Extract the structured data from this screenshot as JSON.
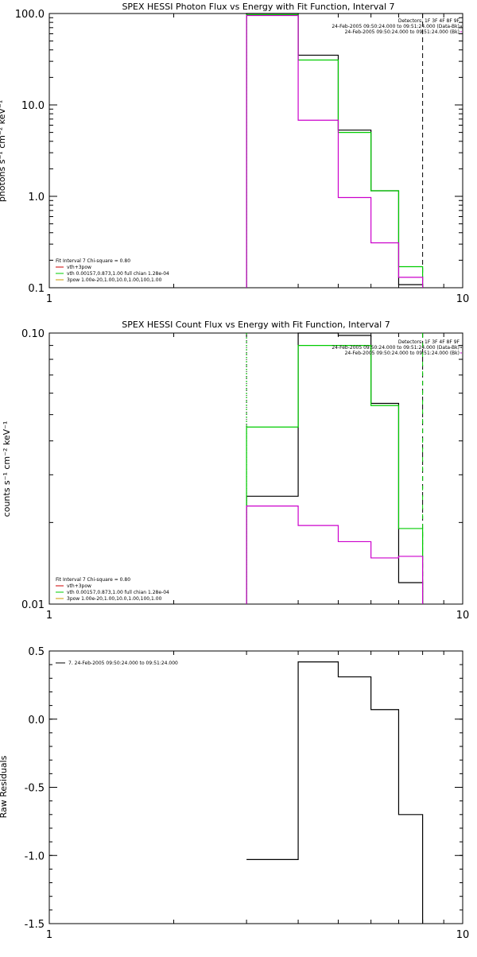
{
  "chart_data": [
    {
      "type": "line",
      "title": "SPEX HESSI Photon Flux vs Energy with Fit Function, Interval 7",
      "xlabel": "",
      "ylabel": "photons s⁻¹ cm⁻² keV⁻¹",
      "xscale": "log",
      "yscale": "log",
      "xlim": [
        1,
        10
      ],
      "ylim": [
        0.1,
        100
      ],
      "x_ticks": [
        {
          "v": 1,
          "label": "1"
        },
        {
          "v": 10,
          "label": "10"
        }
      ],
      "y_ticks": [
        {
          "v": 0.1,
          "label": "0.1"
        },
        {
          "v": 1,
          "label": "1.0"
        },
        {
          "v": 10,
          "label": "10.0"
        },
        {
          "v": 100,
          "label": "100.0"
        }
      ],
      "energy_edges": [
        3,
        4,
        5,
        6,
        7,
        8
      ],
      "vlines": [
        {
          "x": 3,
          "color": "#00cc00",
          "dash": "2,2"
        },
        {
          "x": 8,
          "color": "#000000",
          "dash": "6,4"
        }
      ],
      "series": [
        {
          "color": "#000000",
          "values": [
            100,
            35,
            5.3,
            1.15,
            0.108
          ]
        },
        {
          "color": "#00cc00",
          "values": [
            97,
            31,
            5.0,
            1.15,
            0.17
          ]
        },
        {
          "color": "#cc00cc",
          "values": [
            95,
            6.8,
            0.97,
            0.31,
            0.13
          ]
        }
      ],
      "header_labels": [
        "Detectors: 1F 3F 4F 8F 9F",
        "24-Feb-2005 09:50:24.000 to 09:51:24.000 (Data-Bk)",
        "24-Feb-2005 09:50:24.000 to 09:51:24.000 (Bk)"
      ],
      "fit_labels": [
        {
          "text": "Fit Interval  7    Chi-square = 0.80",
          "color": "#000000"
        },
        {
          "text": "vth+3pow",
          "color": "#cc0000"
        },
        {
          "text": "vth 0.00157,0.873,1.00   full chian 1.28e-04",
          "color": "#00cc00"
        },
        {
          "text": "3pow 1.00e-20,1.00,10.0,1.00,100,1.00",
          "color": "#cc9900"
        }
      ]
    },
    {
      "type": "line",
      "title": "SPEX HESSI Count Flux vs Energy with Fit Function, Interval 7",
      "xlabel": "",
      "ylabel": "counts s⁻¹ cm⁻² keV⁻¹",
      "xscale": "log",
      "yscale": "log",
      "xlim": [
        1,
        10
      ],
      "ylim": [
        0.01,
        0.1
      ],
      "x_ticks": [
        {
          "v": 1,
          "label": "1"
        },
        {
          "v": 10,
          "label": "10"
        }
      ],
      "y_ticks": [
        {
          "v": 0.01,
          "label": "0.01"
        },
        {
          "v": 0.1,
          "label": "0.10"
        }
      ],
      "energy_edges": [
        3,
        4,
        5,
        6,
        7,
        8
      ],
      "vlines": [
        {
          "x": 3,
          "color": "#000000",
          "dash": "1,2"
        },
        {
          "x": 3,
          "color": "#00cc00",
          "dash": "2,3"
        },
        {
          "x": 8,
          "color": "#000000",
          "dash": "6,4"
        },
        {
          "x": 8,
          "color": "#00cc00",
          "dash": "6,6"
        }
      ],
      "series": [
        {
          "color": "#000000",
          "values": [
            0.025,
            0.1,
            0.098,
            0.055,
            0.012
          ]
        },
        {
          "color": "#00cc00",
          "values": [
            0.045,
            0.09,
            0.09,
            0.054,
            0.019
          ]
        },
        {
          "color": "#cc00cc",
          "values": [
            0.023,
            0.0195,
            0.017,
            0.0148,
            0.015
          ]
        }
      ],
      "header_labels": [
        "Detectors: 1F 3F 4F 8F 9F",
        "24-Feb-2005 09:50:24.000 to 09:51:24.000 (Data-Bk)",
        "24-Feb-2005 09:50:24.000 to 09:51:24.000 (Bk)"
      ],
      "fit_labels": [
        {
          "text": "Fit Interval  7    Chi-square = 0.80",
          "color": "#000000"
        },
        {
          "text": "vth+3pow",
          "color": "#cc0000"
        },
        {
          "text": "vth 0.00157,0.873,1.00   full chian 1.28e-04",
          "color": "#00cc00"
        },
        {
          "text": "3pow 1.00e-20,1.00,10.0,1.00,100,1.00",
          "color": "#cc9900"
        }
      ]
    },
    {
      "type": "line",
      "title": "",
      "xlabel": "",
      "ylabel": "Raw Residuals",
      "xscale": "log",
      "yscale": "linear",
      "xlim": [
        1,
        10
      ],
      "ylim": [
        -1.5,
        0.5
      ],
      "x_ticks": [
        {
          "v": 1,
          "label": "1"
        },
        {
          "v": 10,
          "label": "10"
        }
      ],
      "y_ticks": [
        {
          "v": 0.5,
          "label": "0.5"
        },
        {
          "v": 0.0,
          "label": "0.0"
        },
        {
          "v": -0.5,
          "label": "-0.5"
        },
        {
          "v": -1.0,
          "label": "-1.0"
        },
        {
          "v": -1.5,
          "label": "-1.5"
        }
      ],
      "energy_edges": [
        3,
        4,
        5,
        6,
        7,
        8
      ],
      "series": [
        {
          "color": "#000000",
          "values": [
            -1.03,
            0.42,
            0.31,
            0.07,
            -0.7
          ]
        }
      ],
      "legend": [
        {
          "text": "7. 24-Feb-2005 09:50:24.000 to 09:51:24.000",
          "color": "#000000"
        }
      ]
    }
  ]
}
